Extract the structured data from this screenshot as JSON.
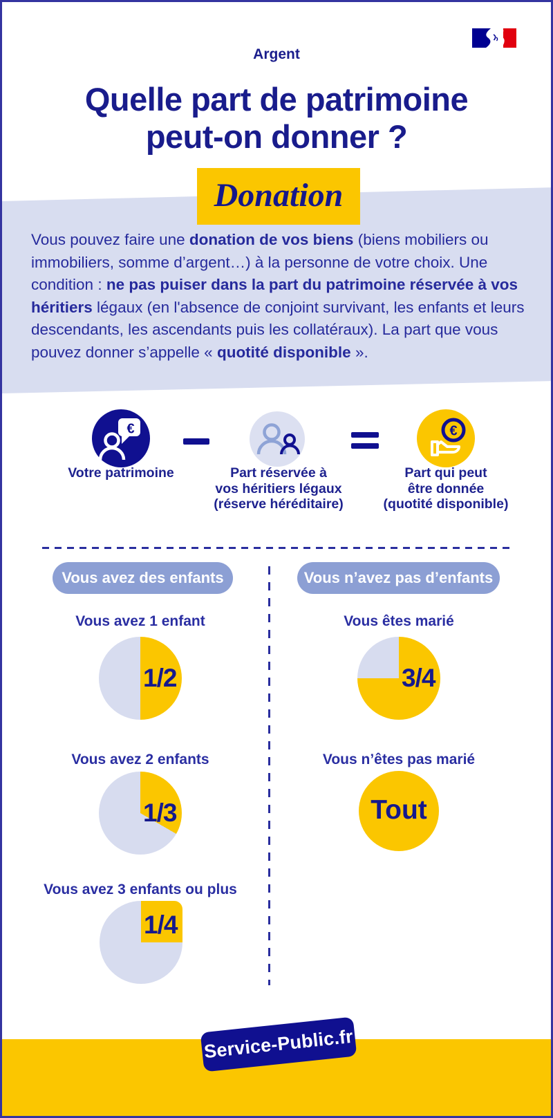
{
  "colors": {
    "navy": "#101090",
    "ink": "#15198C",
    "body_text": "#262A9C",
    "heading_blue": "#2A2EA2",
    "lavender_band": "#D8DDF0",
    "lavender_pie": "#D7DCEF",
    "pill_blue": "#8C9FD4",
    "figure_light_blue": "#8EA3D6",
    "yellow": "#FBC600",
    "flag_blue": "#000091",
    "flag_red": "#E1000F",
    "white": "#FFFFFF"
  },
  "header": {
    "category": "Argent",
    "title_lines": [
      "Quelle part de patrimoine",
      "peut-on donner ?"
    ],
    "badge": "Donation",
    "logo_name": "french-government-flag"
  },
  "intro": {
    "segments": [
      {
        "t": "Vous pouvez faire une ",
        "b": false
      },
      {
        "t": "donation de vos biens",
        "b": true
      },
      {
        "t": " (biens mobiliers ou immobiliers, somme d’argent…) à la personne de votre choix. Une condition : ",
        "b": false
      },
      {
        "t": "ne pas puiser dans la part du patrimoine réservée à vos héritiers",
        "b": true
      },
      {
        "t": " légaux (en l'absence de conjoint survivant, les enfants et leurs descendants, les ascendants puis les collatéraux). La part que vous pouvez donner s’appelle « ",
        "b": false
      },
      {
        "t": "quotité disponible",
        "b": true
      },
      {
        "t": " ».",
        "b": false
      }
    ]
  },
  "equation": {
    "minuend": {
      "icon": "person-euro-speech-bubble-icon",
      "label_lines": [
        "Votre patrimoine"
      ]
    },
    "operator_minus": "−",
    "subtrahend": {
      "icon": "two-people-icon",
      "label_lines": [
        "Part réservée à",
        "vos héritiers légaux",
        "(réserve héréditaire)"
      ]
    },
    "operator_equals": "=",
    "result": {
      "icon": "euro-coin-in-hand-icon",
      "label_lines": [
        "Part qui peut",
        "être donnée",
        "(quotité disponible)"
      ]
    }
  },
  "columns": {
    "left": {
      "pill": "Vous avez des enfants",
      "cases": [
        {
          "heading": "Vous avez 1 enfant",
          "fraction": "1/2"
        },
        {
          "heading": "Vous avez 2 enfants",
          "fraction": "1/3"
        },
        {
          "heading": "Vous avez 3 enfants ou plus",
          "fraction": "1/4"
        }
      ]
    },
    "right": {
      "pill": "Vous n’avez pas d’enfants",
      "cases": [
        {
          "heading": "Vous êtes marié",
          "fraction": "3/4"
        },
        {
          "heading": "Vous n’êtes pas marié",
          "fraction": "Tout"
        }
      ]
    }
  },
  "footer": {
    "brand": "Service-Public.fr"
  },
  "chart_data": [
    {
      "type": "pie",
      "title": "Vous avez 1 enfant",
      "group": "Vous avez des enfants",
      "center_label": "1/2",
      "start_angle_deg": 0,
      "direction": "clockwise",
      "slices": [
        {
          "label": "Part qui peut être donnée (quotité disponible)",
          "value": 0.5,
          "color": "#FBC600"
        },
        {
          "label": "Part réservée aux héritiers (réserve héréditaire)",
          "value": 0.5,
          "color": "#D7DCEF"
        }
      ]
    },
    {
      "type": "pie",
      "title": "Vous avez 2 enfants",
      "group": "Vous avez des enfants",
      "center_label": "1/3",
      "start_angle_deg": 0,
      "direction": "clockwise",
      "slices": [
        {
          "label": "Part qui peut être donnée (quotité disponible)",
          "value": 0.333,
          "color": "#FBC600"
        },
        {
          "label": "Part réservée aux héritiers (réserve héréditaire)",
          "value": 0.667,
          "color": "#D7DCEF"
        }
      ]
    },
    {
      "type": "pie",
      "title": "Vous avez 3 enfants ou plus",
      "group": "Vous avez des enfants",
      "center_label": "1/4",
      "start_angle_deg": 0,
      "direction": "clockwise",
      "slices": [
        {
          "label": "Part qui peut être donnée (quotité disponible)",
          "value": 0.25,
          "color": "#FBC600"
        },
        {
          "label": "Part réservée aux héritiers (réserve héréditaire)",
          "value": 0.75,
          "color": "#D7DCEF"
        }
      ]
    },
    {
      "type": "pie",
      "title": "Vous êtes marié",
      "group": "Vous n’avez pas d’enfants",
      "center_label": "3/4",
      "start_angle_deg": 0,
      "direction": "clockwise",
      "slices": [
        {
          "label": "Part qui peut être donnée (quotité disponible)",
          "value": 0.75,
          "color": "#FBC600"
        },
        {
          "label": "Part réservée aux héritiers (réserve héréditaire)",
          "value": 0.25,
          "color": "#D7DCEF"
        }
      ]
    },
    {
      "type": "pie",
      "title": "Vous n’êtes pas marié",
      "group": "Vous n’avez pas d’enfants",
      "center_label": "Tout",
      "start_angle_deg": 0,
      "direction": "clockwise",
      "slices": [
        {
          "label": "Part qui peut être donnée (quotité disponible)",
          "value": 1.0,
          "color": "#FBC600"
        }
      ]
    }
  ]
}
